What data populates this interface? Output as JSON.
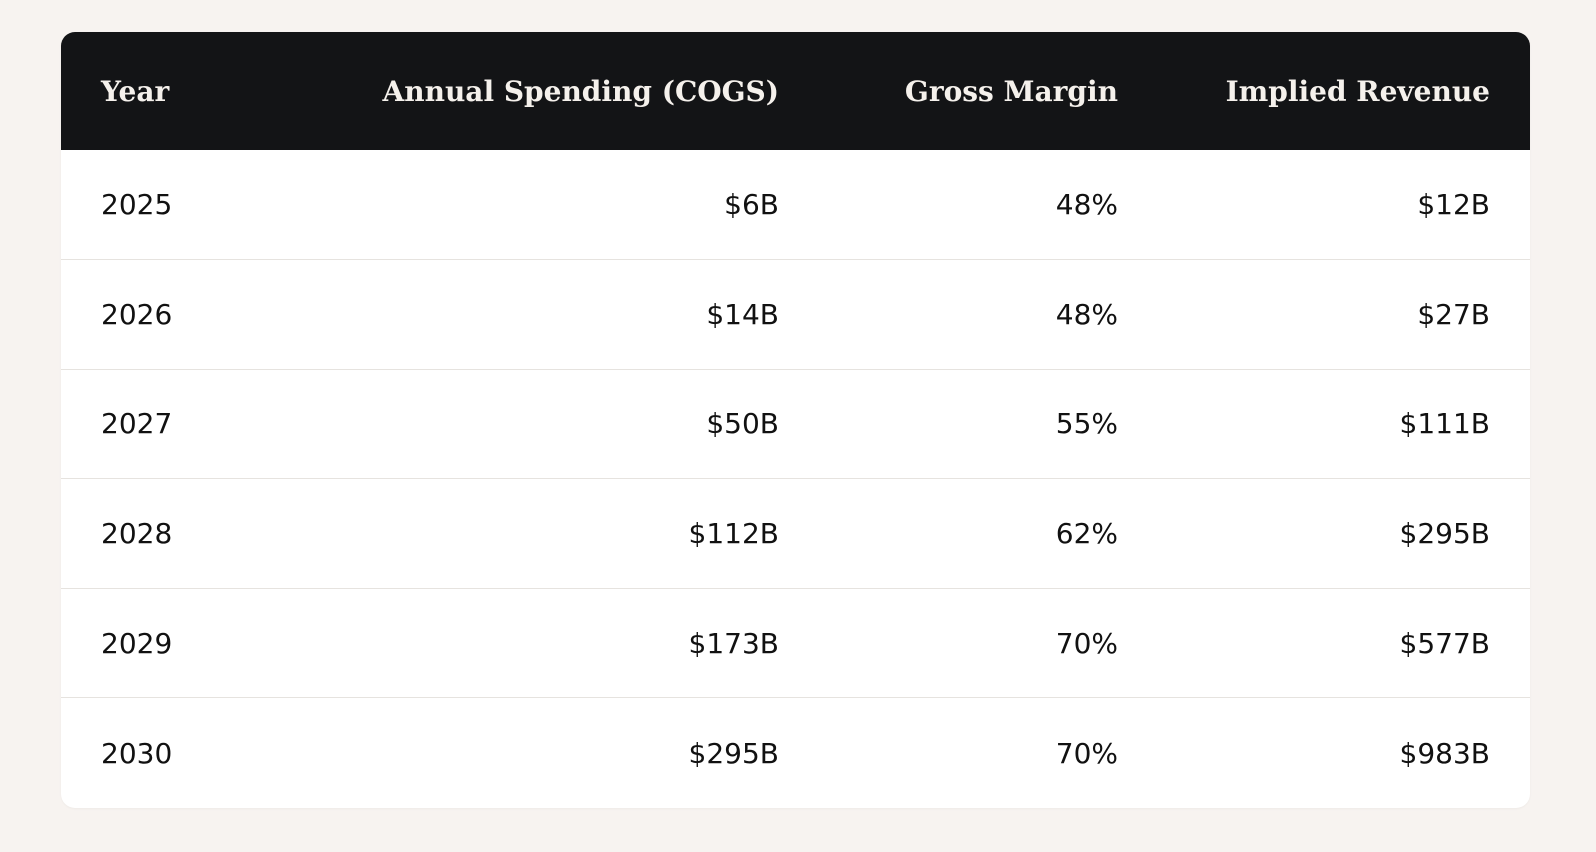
{
  "table": {
    "headers": [
      "Year",
      "Annual Spending (COGS)",
      "Gross Margin",
      "Implied Revenue"
    ],
    "rows": [
      {
        "year": "2025",
        "cogs": "$6B",
        "margin": "48%",
        "revenue": "$12B"
      },
      {
        "year": "2026",
        "cogs": "$14B",
        "margin": "48%",
        "revenue": "$27B"
      },
      {
        "year": "2027",
        "cogs": "$50B",
        "margin": "55%",
        "revenue": "$111B"
      },
      {
        "year": "2028",
        "cogs": "$112B",
        "margin": "62%",
        "revenue": "$295B"
      },
      {
        "year": "2029",
        "cogs": "$173B",
        "margin": "70%",
        "revenue": "$577B"
      },
      {
        "year": "2030",
        "cogs": "$295B",
        "margin": "70%",
        "revenue": "$983B"
      }
    ]
  },
  "colors": {
    "page_background": "#f7f3f0",
    "header_background": "#131416",
    "header_text": "#f5f1ec",
    "row_divider": "#e6e3df"
  }
}
